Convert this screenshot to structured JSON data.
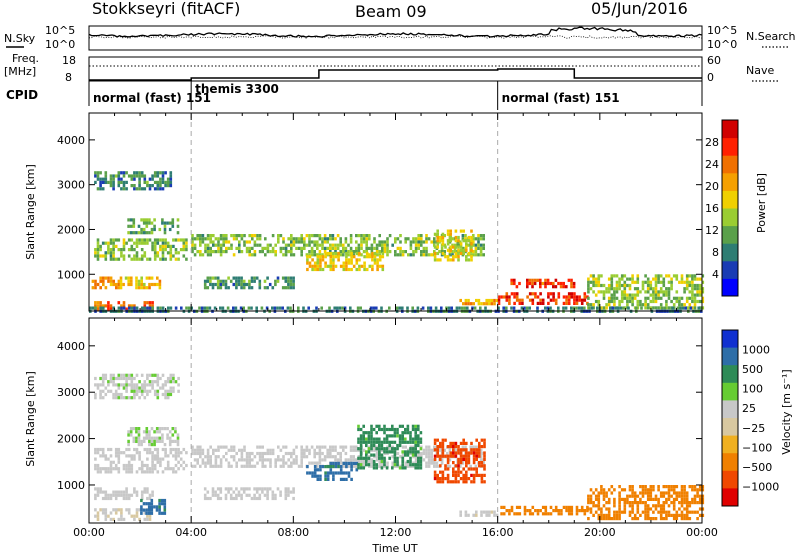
{
  "header": {
    "station": "Stokkseyri (fitACF)",
    "beam": "Beam 09",
    "date": "05/Jun/2016"
  },
  "top_panels": {
    "nsky_label": "N.Sky",
    "nsearch_label": "N.Search",
    "freq_label_1": "Freq.",
    "freq_label_2": "[MHz]",
    "nave_label": "Nave",
    "cpid_label": "CPID",
    "nsky_ticks": [
      "10^5",
      "10^0"
    ],
    "nsearch_ticks": [
      "10^5",
      "10^0"
    ],
    "freq_ticks": [
      "18",
      "8"
    ],
    "nave_ticks": [
      "60",
      "0"
    ]
  },
  "cpid_segments": [
    {
      "label": "normal (fast) 151",
      "start_hour": 0
    },
    {
      "label": "themis 3300",
      "start_hour": 4
    },
    {
      "label": "normal (fast) 151",
      "start_hour": 16
    }
  ],
  "colors": {
    "power": [
      "#0000ff",
      "#1a3cb4",
      "#2e7d73",
      "#5aa04a",
      "#9acd32",
      "#f0d000",
      "#f5a000",
      "#f07000",
      "#ff2000",
      "#d00000"
    ],
    "velocity": [
      "#1030d0",
      "#2e6ea8",
      "#2e8b57",
      "#66cc33",
      "#c8c8c8",
      "#d8c8a0",
      "#f0b020",
      "#f08000",
      "#f04800",
      "#e00000"
    ]
  },
  "chart_data": [
    {
      "type": "heatmap",
      "name": "power",
      "xlabel": "",
      "ylabel": "Slant Range [km]",
      "xlim": [
        0,
        24
      ],
      "ylim": [
        180,
        4600
      ],
      "yticks": [
        1000,
        2000,
        3000,
        4000
      ],
      "colorbar_label": "Power [dB]",
      "colorbar_range": [
        0,
        32
      ],
      "colorbar_ticks": [
        "4",
        "8",
        "12",
        "16",
        "20",
        "24",
        "28"
      ],
      "bands": [
        {
          "x": [
            0.1,
            1.2
          ],
          "y": [
            700,
            950
          ],
          "value": 22
        },
        {
          "x": [
            1.2,
            2.8
          ],
          "y": [
            700,
            950
          ],
          "value": 19
        },
        {
          "x": [
            0.2,
            2.5
          ],
          "y": [
            200,
            400
          ],
          "value": 24
        },
        {
          "x": [
            0.2,
            3.8
          ],
          "y": [
            1300,
            1800
          ],
          "value": 13
        },
        {
          "x": [
            1.5,
            3.5
          ],
          "y": [
            1900,
            2250
          ],
          "value": 11
        },
        {
          "x": [
            0.2,
            3.2
          ],
          "y": [
            2900,
            3300
          ],
          "value": 9
        },
        {
          "x": [
            4.0,
            15.5
          ],
          "y": [
            1400,
            1900
          ],
          "value": 13
        },
        {
          "x": [
            4.5,
            8.0
          ],
          "y": [
            700,
            950
          ],
          "value": 10
        },
        {
          "x": [
            8.5,
            11.5
          ],
          "y": [
            1100,
            1500
          ],
          "value": 18
        },
        {
          "x": [
            13.5,
            15.0
          ],
          "y": [
            1300,
            2000
          ],
          "value": 17
        },
        {
          "x": [
            14.5,
            16.0
          ],
          "y": [
            350,
            450
          ],
          "value": 20
        },
        {
          "x": [
            16.0,
            19.5
          ],
          "y": [
            350,
            600
          ],
          "value": 27
        },
        {
          "x": [
            16.5,
            19.0
          ],
          "y": [
            700,
            900
          ],
          "value": 26
        },
        {
          "x": [
            19.5,
            24.0
          ],
          "y": [
            250,
            1000
          ],
          "value": 14
        },
        {
          "x": [
            0.0,
            24.0
          ],
          "y": [
            180,
            280
          ],
          "value": 8
        }
      ]
    },
    {
      "type": "heatmap",
      "name": "velocity",
      "xlabel": "Time UT",
      "ylabel": "Slant Range [km]",
      "xlim": [
        0,
        24
      ],
      "ylim": [
        180,
        4600
      ],
      "yticks": [
        1000,
        2000,
        3000,
        4000
      ],
      "xticks": [
        "00:00",
        "04:00",
        "08:00",
        "12:00",
        "16:00",
        "20:00",
        "00:00"
      ],
      "colorbar_label": "Velocity [m s⁻¹]",
      "colorbar_ticks": [
        "1000",
        "500",
        "100",
        "25",
        "−25",
        "−100",
        "−500",
        "−1000"
      ],
      "bands": [
        {
          "x": [
            0.2,
            3.5
          ],
          "y": [
            2900,
            3400
          ],
          "value": 10
        },
        {
          "x": [
            0.2,
            3.8
          ],
          "y": [
            1300,
            1800
          ],
          "value": 5
        },
        {
          "x": [
            1.5,
            3.5
          ],
          "y": [
            1900,
            2250
          ],
          "value": 20
        },
        {
          "x": [
            0.2,
            2.5
          ],
          "y": [
            700,
            950
          ],
          "value": 0
        },
        {
          "x": [
            0.2,
            2.5
          ],
          "y": [
            250,
            500
          ],
          "value": -20
        },
        {
          "x": [
            2.0,
            3.0
          ],
          "y": [
            400,
            700
          ],
          "value": 400
        },
        {
          "x": [
            4.0,
            15.5
          ],
          "y": [
            1400,
            1850
          ],
          "value": 0
        },
        {
          "x": [
            8.5,
            10.5
          ],
          "y": [
            1100,
            1500
          ],
          "value": 450
        },
        {
          "x": [
            10.5,
            13.0
          ],
          "y": [
            1400,
            2300
          ],
          "value": 100
        },
        {
          "x": [
            13.5,
            15.5
          ],
          "y": [
            1100,
            2000
          ],
          "value": -550
        },
        {
          "x": [
            14.5,
            16.0
          ],
          "y": [
            350,
            450
          ],
          "value": -10
        },
        {
          "x": [
            16.0,
            19.5
          ],
          "y": [
            350,
            550
          ],
          "value": -150
        },
        {
          "x": [
            19.5,
            24.0
          ],
          "y": [
            250,
            1000
          ],
          "value": -120
        },
        {
          "x": [
            4.5,
            8.0
          ],
          "y": [
            700,
            950
          ],
          "value": 0
        }
      ]
    }
  ]
}
